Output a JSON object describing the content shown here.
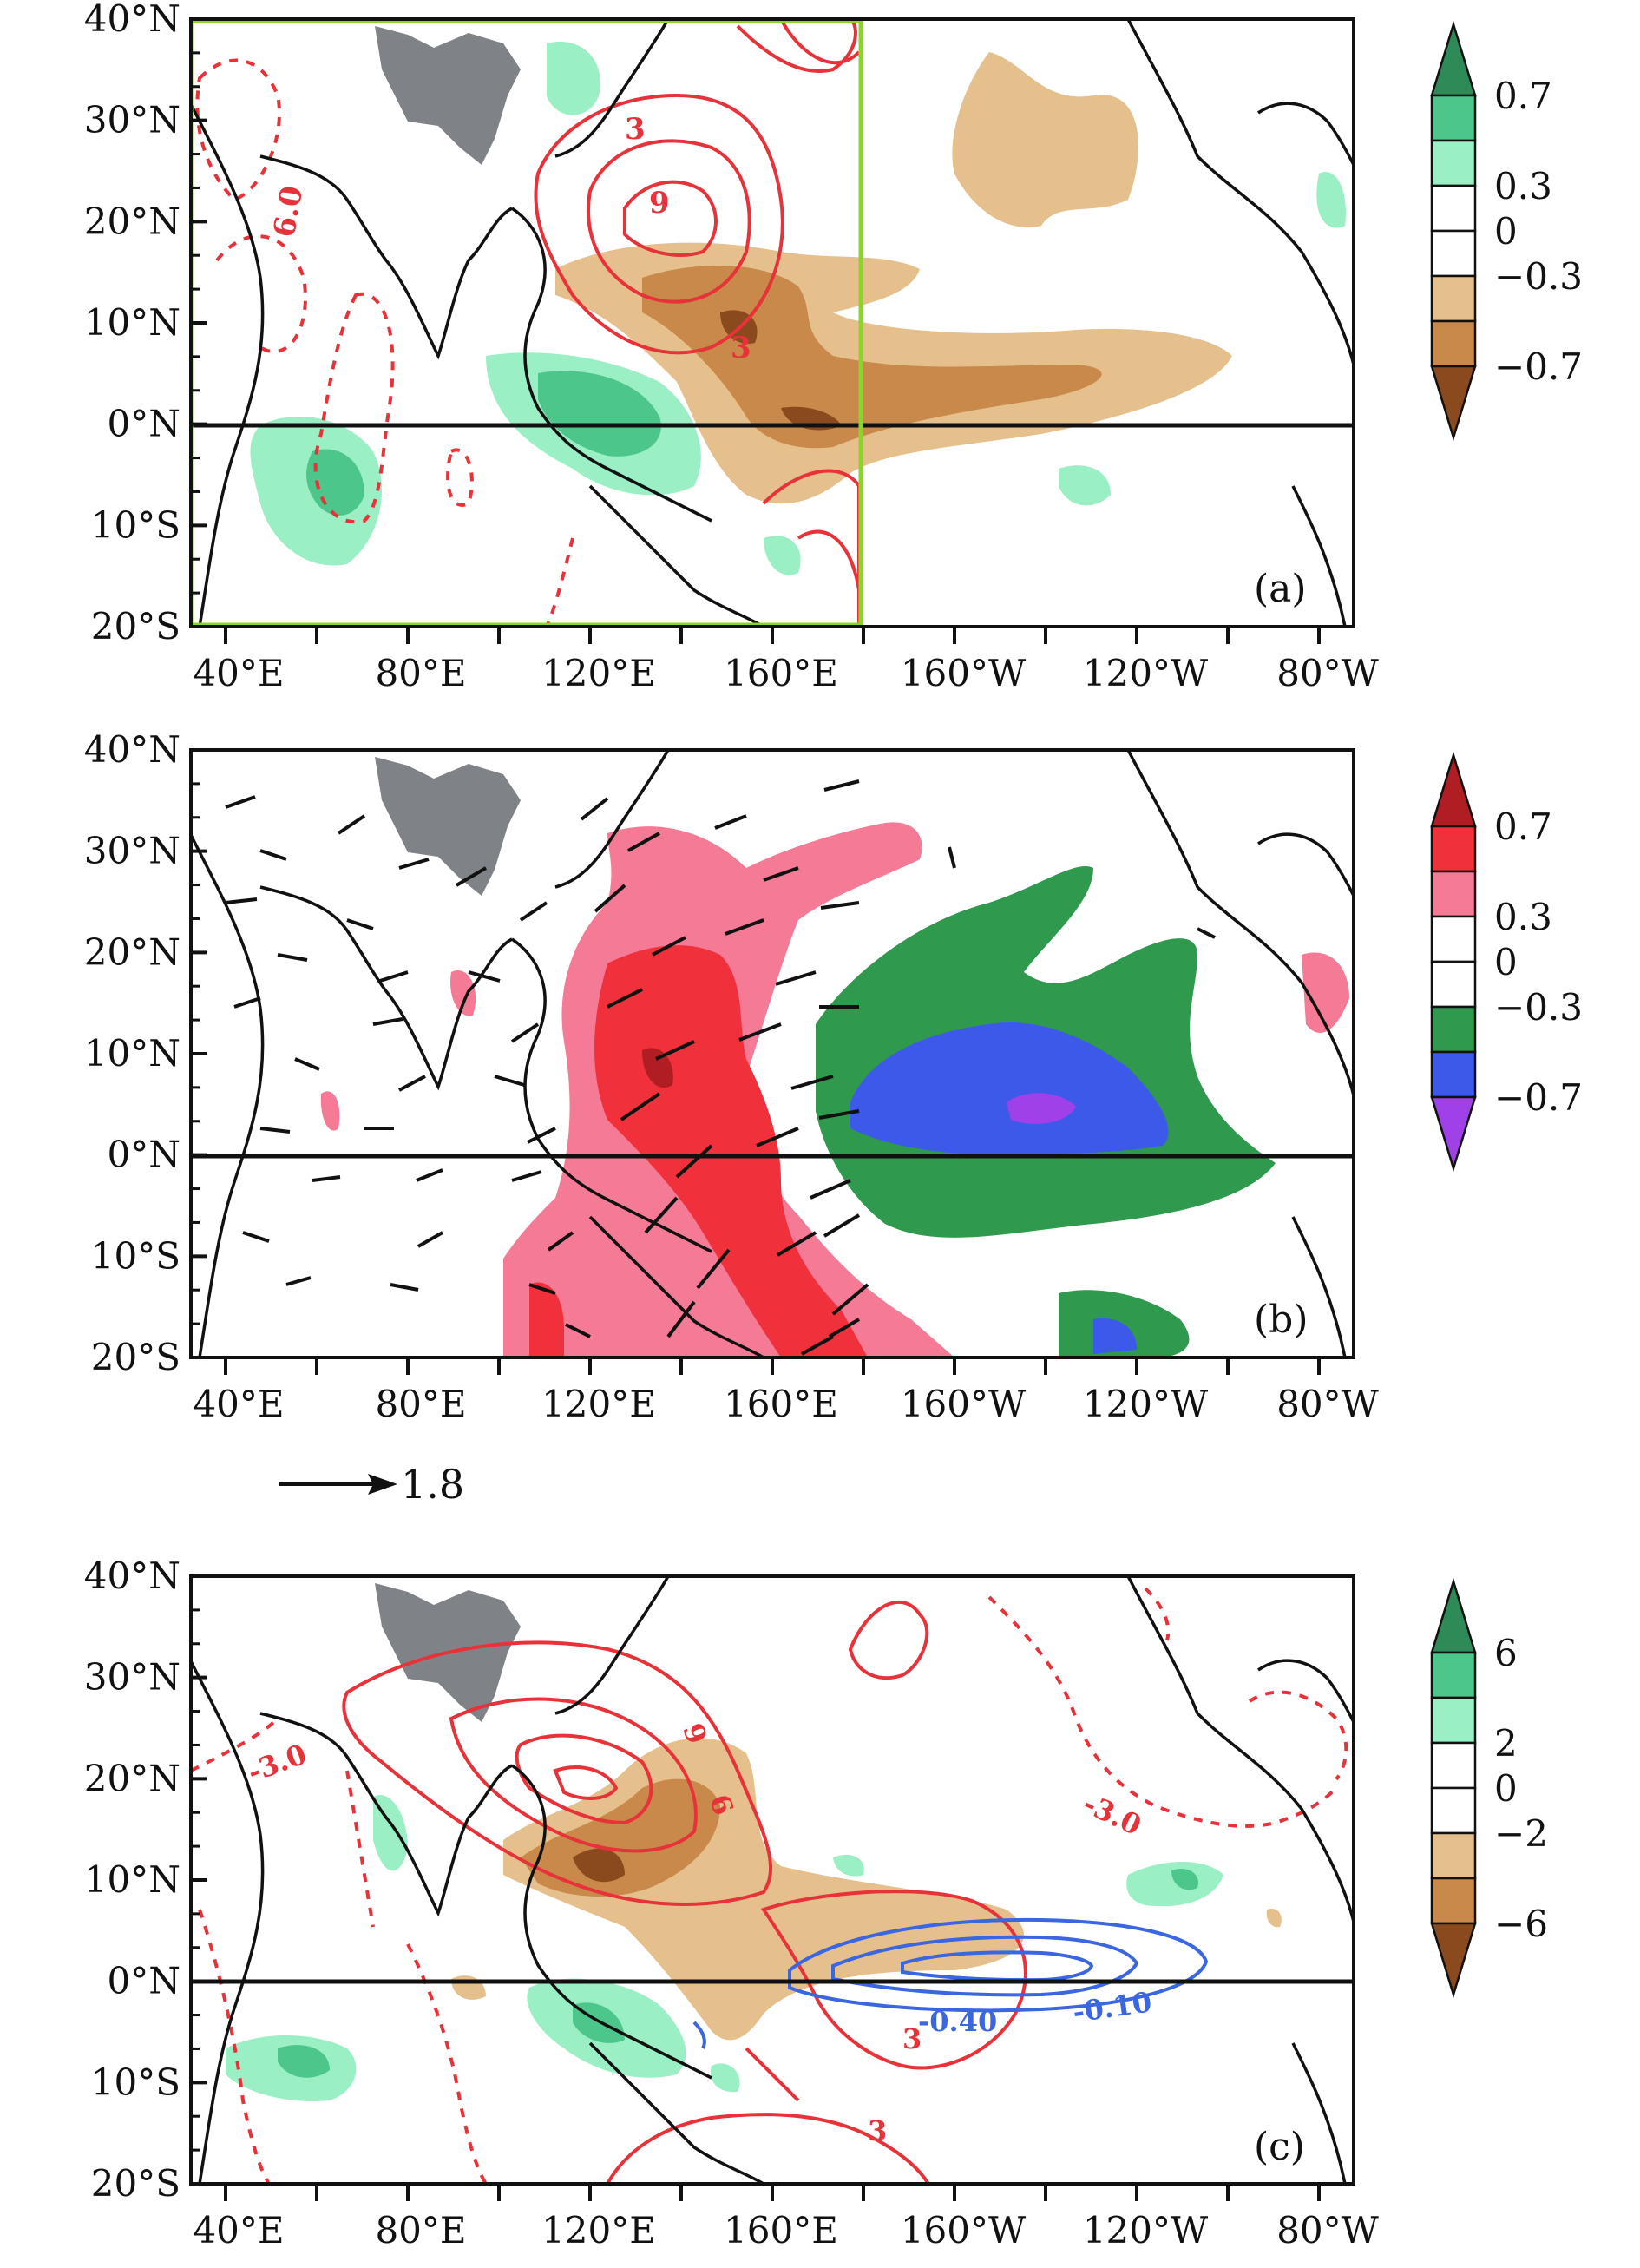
{
  "figure": {
    "axes": {
      "lat_ticks": [
        "40°N",
        "30°N",
        "20°N",
        "10°N",
        "0°N",
        "10°S",
        "20°S"
      ],
      "lon_ticks": [
        "40°E",
        "80°E",
        "120°E",
        "160°E",
        "160°W",
        "120°W",
        "80°W"
      ]
    },
    "colors": {
      "land_outline": "#111111",
      "plateau_mask": "#7f8387",
      "box_outline": "#8bd430",
      "contour_red": "#e8323a",
      "contour_blue": "#3a66e0",
      "vector": "#111111"
    },
    "panels": [
      {
        "label": "(a)",
        "colorbar": {
          "labels": [
            "0.7",
            "0.3",
            "0",
            "−0.3",
            "−0.7"
          ],
          "colors": [
            "#2e8b57",
            "#4cc68a",
            "#9aefc4",
            "#ffffff",
            "#ffffff",
            "#e6c08c",
            "#c8894a",
            "#8a4a1e"
          ]
        },
        "contour_labels": [
          "3",
          "9",
          "3",
          "6.0"
        ]
      },
      {
        "label": "(b)",
        "colorbar": {
          "labels": [
            "0.7",
            "0.3",
            "0",
            "−0.3",
            "−0.7"
          ],
          "colors": [
            "#b01e24",
            "#f0303a",
            "#f57a95",
            "#ffffff",
            "#ffffff",
            "#2f9a4e",
            "#3d59ea",
            "#a040e8"
          ]
        },
        "reference_vector": "1.8"
      },
      {
        "label": "(c)",
        "colorbar": {
          "labels": [
            "6",
            "2",
            "0",
            "−2",
            "−6"
          ],
          "colors": [
            "#2e8b57",
            "#4cc68a",
            "#9aefc4",
            "#ffffff",
            "#ffffff",
            "#e6c08c",
            "#c8894a",
            "#8a4a1e"
          ]
        },
        "contour_labels": [
          "-3.0",
          "9",
          "6",
          "-3.0",
          "3",
          "3",
          "-0.40",
          "-0.10"
        ]
      }
    ]
  }
}
